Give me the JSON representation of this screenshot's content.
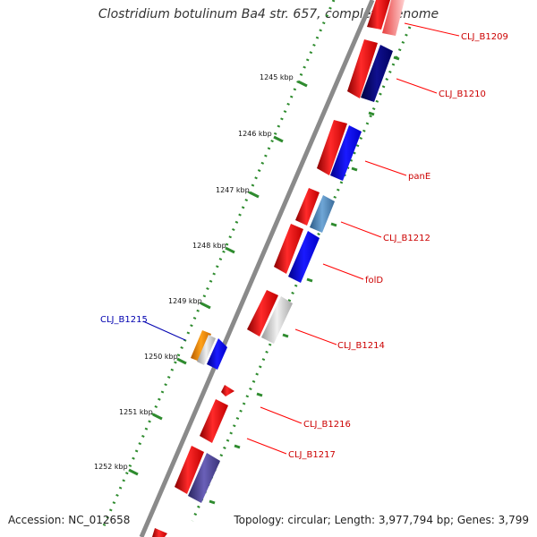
{
  "title": "Clostridium botulinum Ba4 str. 657, complete genome",
  "footer": {
    "accession": "Accession: NC_012658",
    "topology": "Topology: circular; Length: 3,977,794 bp; Genes: 3,799"
  },
  "colors": {
    "backbone": "#8a8a8a",
    "tick": "#2e8b2e",
    "forward_label": "#cc0000",
    "reverse_label": "#0000b0",
    "dot_track": "#2e8b2e"
  },
  "ticks": [
    "1245 kbp",
    "1246 kbp",
    "1247 kbp",
    "1248 kbp",
    "1249 kbp",
    "1250 kbp",
    "1251 kbp",
    "1252 kbp"
  ],
  "gene_labels": [
    {
      "id": "CLJ_B1209",
      "text": "CLJ_B1209",
      "strand": "forward"
    },
    {
      "id": "CLJ_B1210",
      "text": "CLJ_B1210",
      "strand": "forward"
    },
    {
      "id": "panE",
      "text": "panE",
      "strand": "forward"
    },
    {
      "id": "CLJ_B1212",
      "text": "CLJ_B1212",
      "strand": "forward"
    },
    {
      "id": "folD",
      "text": "folD",
      "strand": "forward"
    },
    {
      "id": "CLJ_B1214",
      "text": "CLJ_B1214",
      "strand": "forward"
    },
    {
      "id": "CLJ_B1215",
      "text": "CLJ_B1215",
      "strand": "reverse"
    },
    {
      "id": "CLJ_B1216",
      "text": "CLJ_B1216",
      "strand": "forward"
    },
    {
      "id": "CLJ_B1217",
      "text": "CLJ_B1217",
      "strand": "forward"
    }
  ]
}
